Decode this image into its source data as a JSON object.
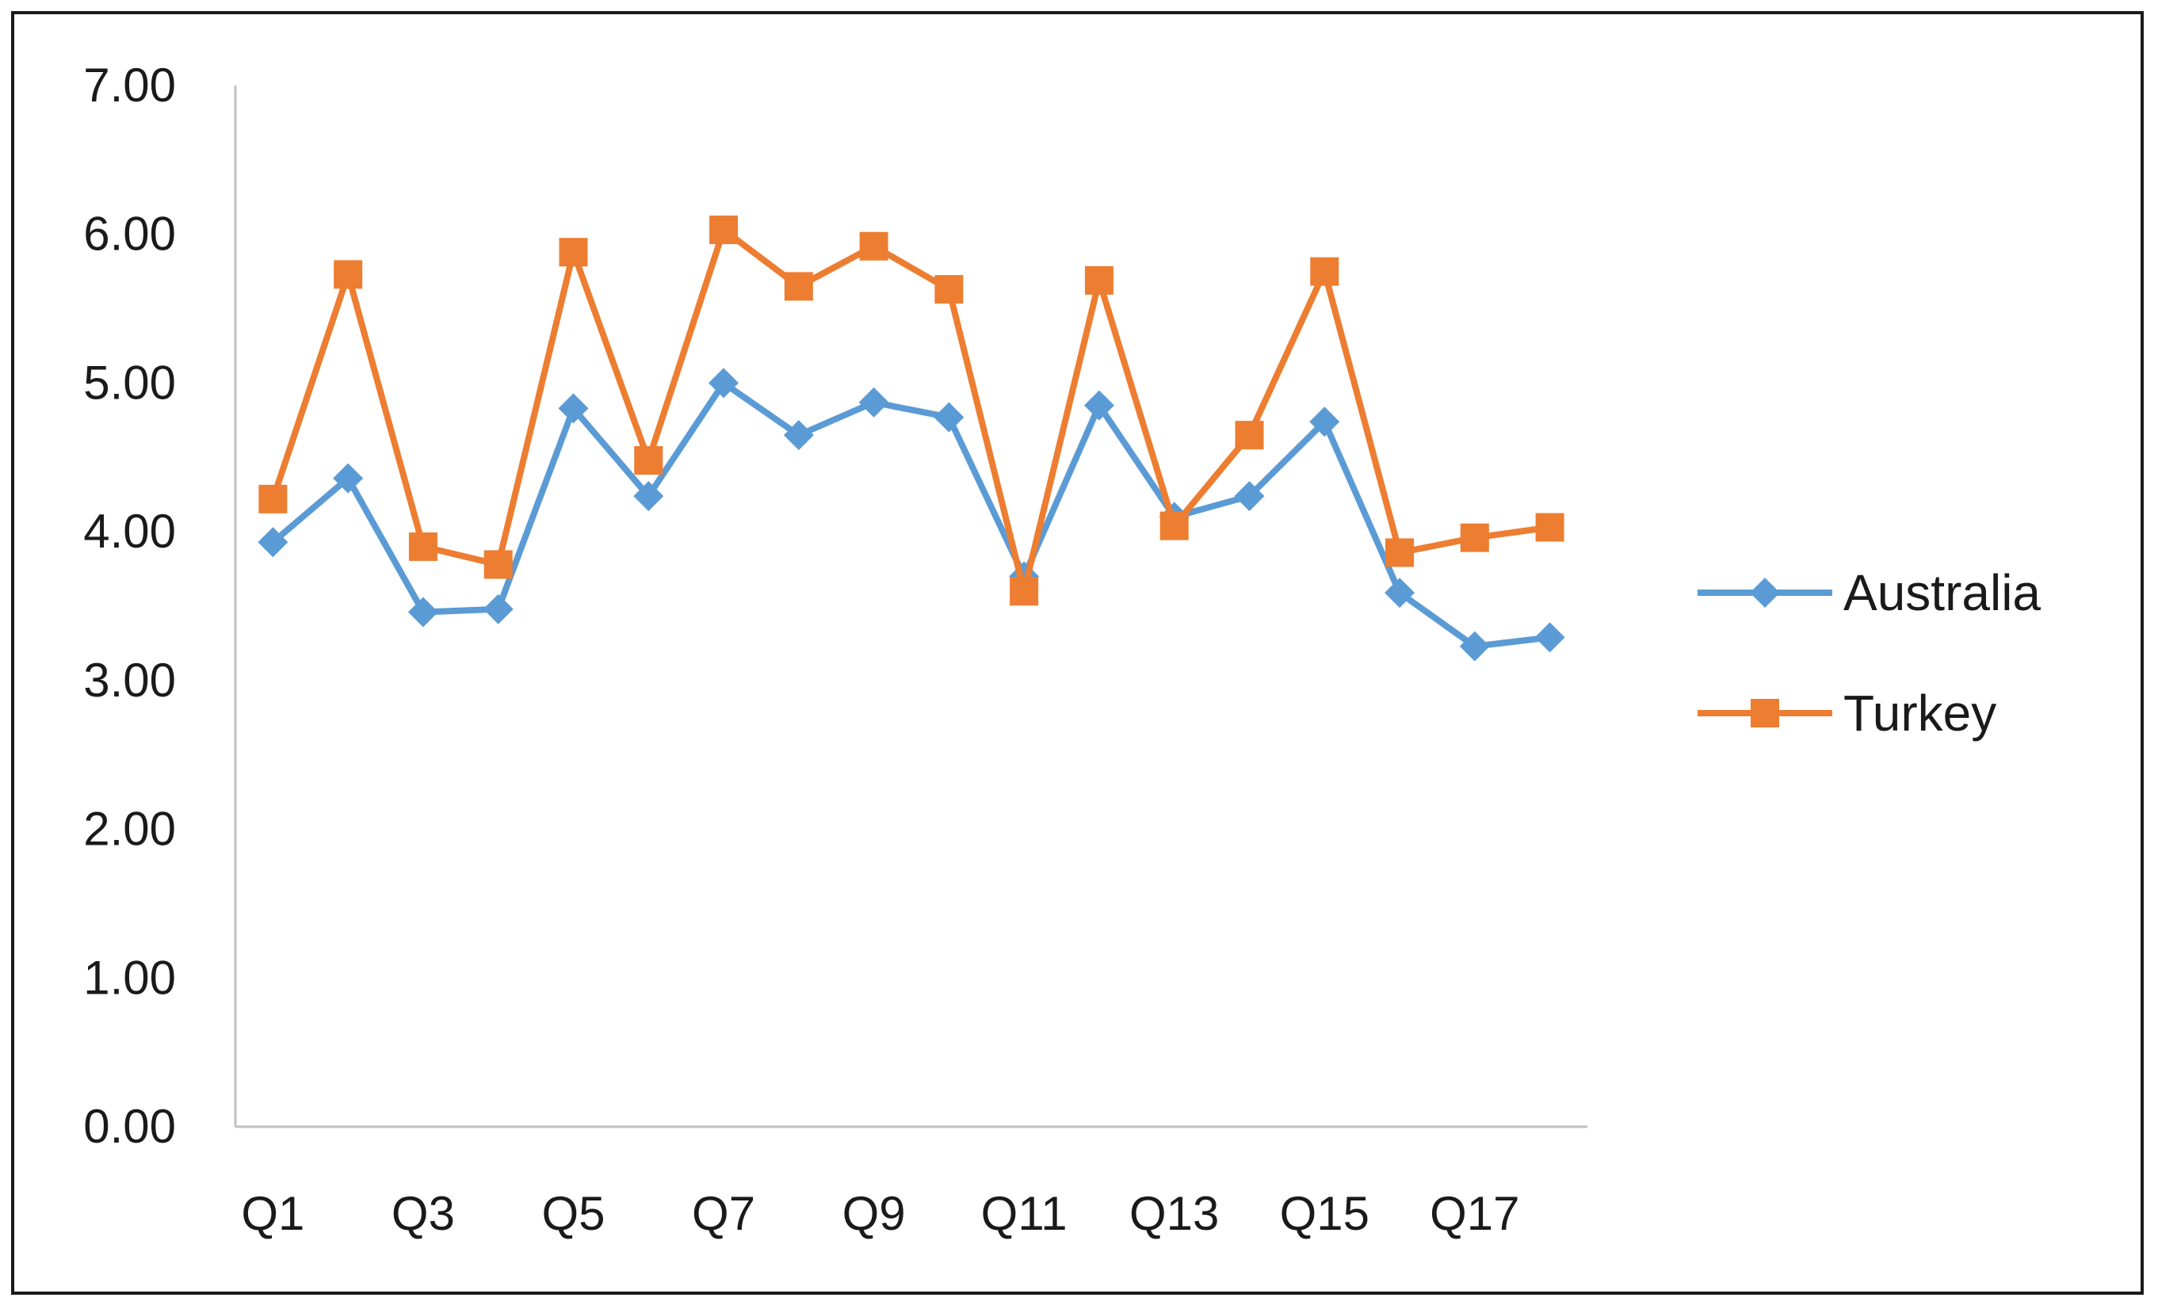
{
  "chart_data": {
    "type": "line",
    "title": "",
    "xlabel": "",
    "ylabel": "",
    "categories": [
      "Q1",
      "Q2",
      "Q3",
      "Q4",
      "Q5",
      "Q6",
      "Q7",
      "Q8",
      "Q9",
      "Q10",
      "Q11",
      "Q12",
      "Q13",
      "Q14",
      "Q15",
      "Q16",
      "Q17",
      "Q18"
    ],
    "x_tick_labels": [
      "Q1",
      "Q3",
      "Q5",
      "Q7",
      "Q9",
      "Q11",
      "Q13",
      "Q15",
      "Q17"
    ],
    "ylim": [
      0,
      7
    ],
    "y_ticks": [
      "0.00",
      "1.00",
      "2.00",
      "3.00",
      "4.00",
      "5.00",
      "6.00",
      "7.00"
    ],
    "grid": false,
    "legend_position": "right",
    "series": [
      {
        "name": "Australia",
        "color": "#5B9BD5",
        "marker": "diamond",
        "values": [
          3.93,
          4.36,
          3.46,
          3.48,
          4.83,
          4.24,
          5.0,
          4.65,
          4.87,
          4.77,
          3.7,
          4.85,
          4.1,
          4.24,
          4.74,
          3.59,
          3.23,
          3.29
        ]
      },
      {
        "name": "Turkey",
        "color": "#ED7D31",
        "marker": "square",
        "values": [
          4.22,
          5.73,
          3.9,
          3.78,
          5.88,
          4.48,
          6.03,
          5.65,
          5.92,
          5.63,
          3.6,
          5.69,
          4.04,
          4.65,
          5.75,
          3.86,
          3.96,
          4.03
        ]
      }
    ]
  }
}
